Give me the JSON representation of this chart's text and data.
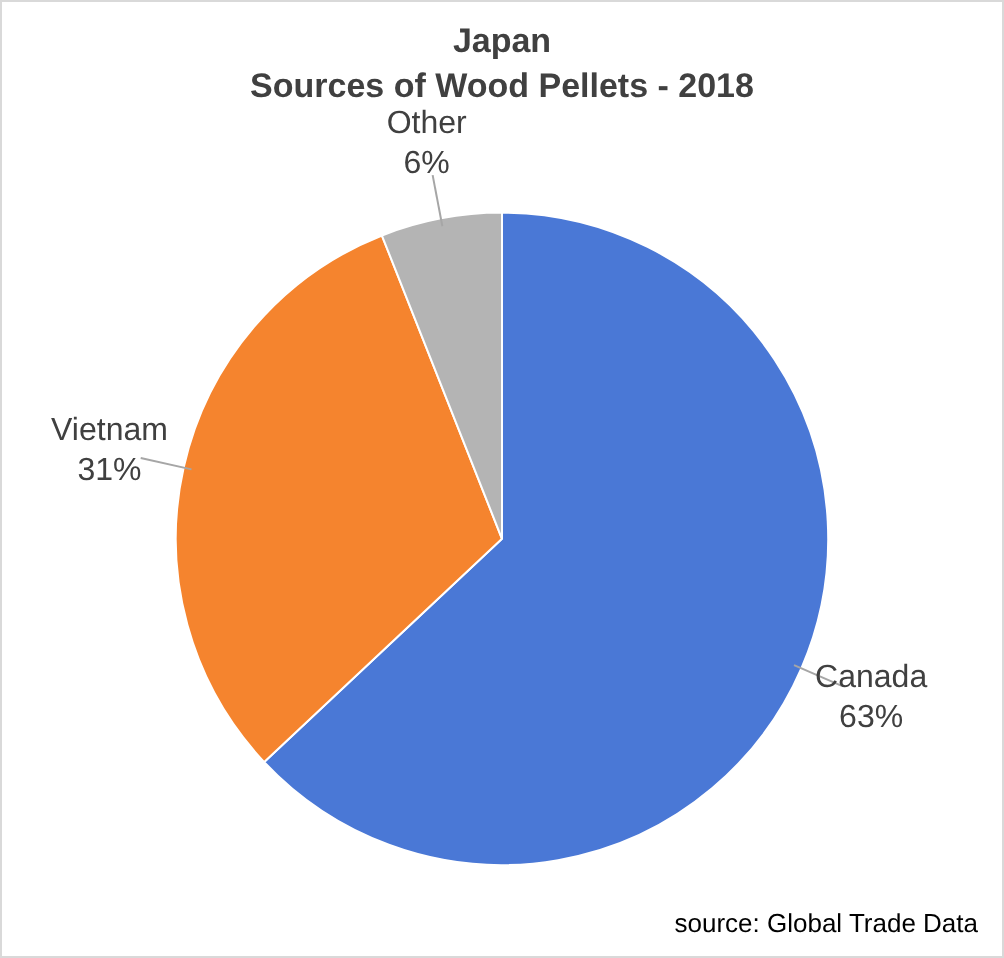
{
  "chart_data": {
    "type": "pie",
    "title": "Japan",
    "subtitle": "Sources of Wood Pellets - 2018",
    "categories": [
      "Canada",
      "Vietnam",
      "Other"
    ],
    "values": [
      63,
      31,
      6
    ],
    "colors": [
      "#4a78d6",
      "#f5842e",
      "#b4b4b4"
    ],
    "value_labels": [
      "63%",
      "31%",
      "6%"
    ],
    "legend": false,
    "annotations": [
      "source: Global Trade Data"
    ]
  }
}
